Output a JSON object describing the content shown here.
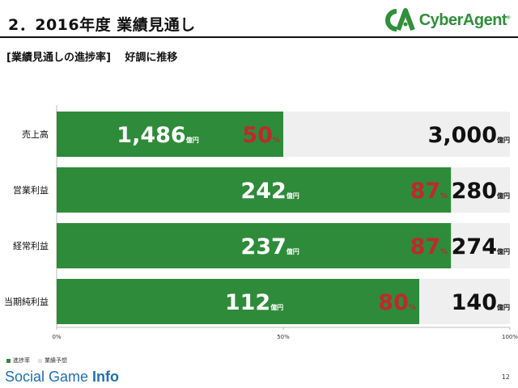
{
  "slide": {
    "title": "2．2016年度 業績見通し",
    "subtitle": "[業績見通しの進捗率]　 好調に推移",
    "brand": "CyberAgent",
    "brand_mark": "reg-mark",
    "footer_brand_light": "Social Game ",
    "footer_brand_bold": "Info",
    "page_number": "12"
  },
  "colors": {
    "progress": "#2e8b3a",
    "forecast": "#efefef",
    "percent_text": "#c0282e",
    "brand_green": "#2f8f3a",
    "footer_blue": "#1f6fb5"
  },
  "chart_data": {
    "type": "bar",
    "orientation": "horizontal",
    "stacked": true,
    "categories": [
      "売上高",
      "営業利益",
      "経常利益",
      "当期純利益"
    ],
    "series": [
      {
        "name": "進捗率",
        "values": [
          50,
          87,
          87,
          80
        ]
      },
      {
        "name": "業績予想",
        "values": [
          50,
          13,
          13,
          20
        ]
      }
    ],
    "progress_amounts": [
      "1,486",
      "242",
      "237",
      "112"
    ],
    "forecast_amounts": [
      "3,000",
      "280",
      "274",
      "140"
    ],
    "percent_labels": [
      "50",
      "87",
      "87",
      "80"
    ],
    "percent_unit": "%",
    "amount_unit": "億円",
    "xlim": [
      0,
      100
    ],
    "x_ticks": [
      "0%",
      "50%",
      "100%"
    ],
    "legend_position": "bottom-left"
  }
}
